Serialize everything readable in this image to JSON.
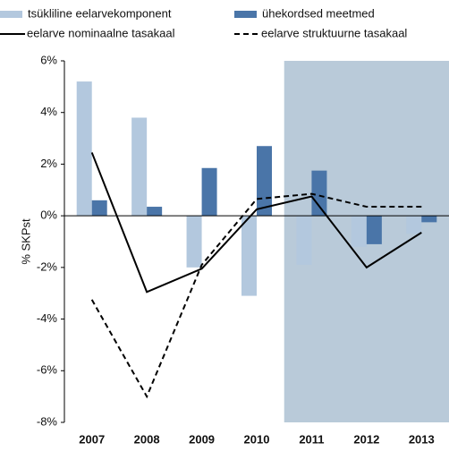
{
  "chart_data": {
    "type": "bar",
    "y_label": "% SKPst",
    "categories": [
      "2007",
      "2008",
      "2009",
      "2010",
      "2011",
      "2012",
      "2013"
    ],
    "series": [
      {
        "name": "tsükliline eelarvekomponent",
        "type": "bar",
        "color": "#b3c8de",
        "values": [
          5.2,
          3.8,
          -2.0,
          -3.1,
          -1.9,
          -1.2,
          -0.7
        ]
      },
      {
        "name": "ühekordsed meetmed",
        "type": "bar",
        "color": "#4a75a8",
        "values": [
          0.6,
          0.35,
          1.85,
          2.7,
          1.75,
          -1.1,
          -0.25
        ]
      },
      {
        "name": "eelarve nominaalne tasakaal",
        "type": "line",
        "dash": false,
        "color": "#000000",
        "values": [
          2.45,
          -2.95,
          -2.05,
          0.25,
          0.75,
          -2.0,
          -0.65
        ]
      },
      {
        "name": "eelarve struktuurne tasakaal",
        "type": "line",
        "dash": true,
        "color": "#000000",
        "values": [
          -3.25,
          -7.0,
          -1.9,
          0.65,
          0.85,
          0.35,
          0.35
        ]
      }
    ],
    "highlight_from": "2011",
    "highlight_color": "#b9cad9",
    "ylim": [
      -8,
      6
    ],
    "yticks": [
      {
        "value": -8,
        "label": "-8%"
      },
      {
        "value": -6,
        "label": "-6%"
      },
      {
        "value": -4,
        "label": "-4%"
      },
      {
        "value": -2,
        "label": "-2%"
      },
      {
        "value": 0,
        "label": "0%"
      },
      {
        "value": 2,
        "label": "2%"
      },
      {
        "value": 4,
        "label": "4%"
      },
      {
        "value": 6,
        "label": "6%"
      }
    ]
  }
}
